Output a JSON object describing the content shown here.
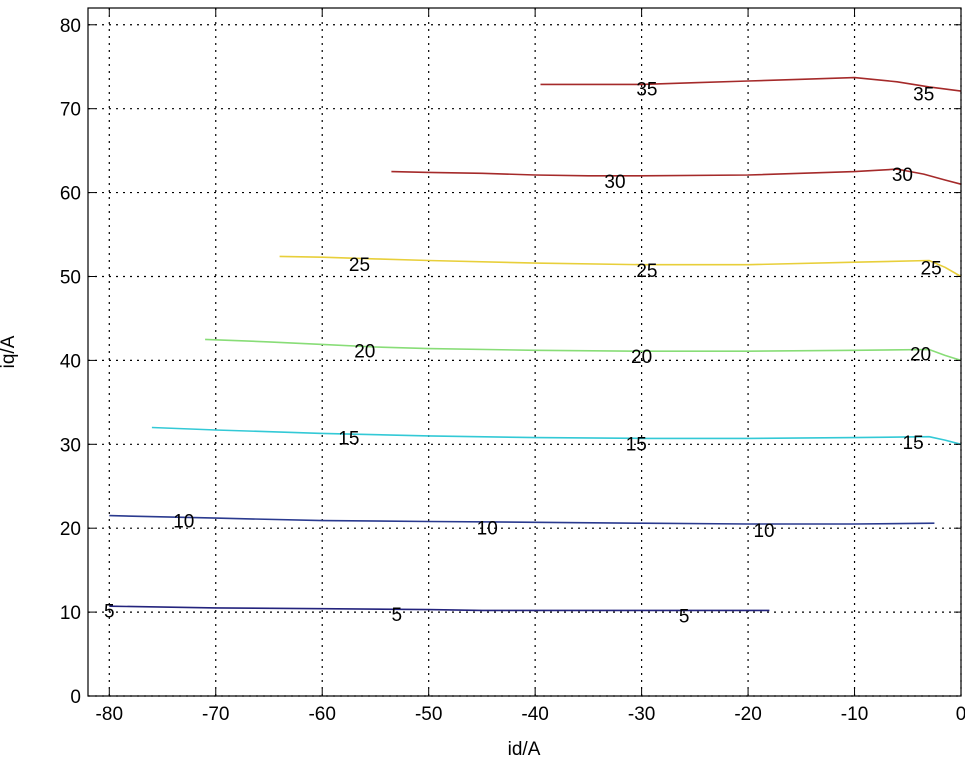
{
  "chart_data": {
    "type": "line",
    "subtype": "contour",
    "xlabel": "id/A",
    "ylabel": "iq/A",
    "xlim": [
      -82,
      0
    ],
    "ylim": [
      0,
      82
    ],
    "xticks": [
      -80,
      -70,
      -60,
      -50,
      -40,
      -30,
      -20,
      -10,
      0
    ],
    "yticks": [
      0,
      10,
      20,
      30,
      40,
      50,
      60,
      70,
      80
    ],
    "grid": true,
    "series": [
      {
        "level": "5",
        "color": "#23237d",
        "points": [
          [
            -80,
            10.7
          ],
          [
            -70,
            10.5
          ],
          [
            -60,
            10.4
          ],
          [
            -50,
            10.3
          ],
          [
            -45,
            10.2
          ],
          [
            -30,
            10.2
          ],
          [
            -18,
            10.2
          ]
        ],
        "labels": [
          {
            "text": "5",
            "x": -80,
            "y": 10.2
          },
          {
            "text": "5",
            "x": -53,
            "y": 9.8
          },
          {
            "text": "5",
            "x": -26,
            "y": 9.6
          }
        ]
      },
      {
        "level": "10",
        "color": "#2a3a8f",
        "points": [
          [
            -80,
            21.5
          ],
          [
            -70,
            21.2
          ],
          [
            -60,
            20.9
          ],
          [
            -50,
            20.8
          ],
          [
            -40,
            20.7
          ],
          [
            -30,
            20.6
          ],
          [
            -20,
            20.5
          ],
          [
            -10,
            20.5
          ],
          [
            -2.5,
            20.6
          ]
        ],
        "labels": [
          {
            "text": "10",
            "x": -73,
            "y": 20.9
          },
          {
            "text": "10",
            "x": -44.5,
            "y": 20.1
          },
          {
            "text": "10",
            "x": -18.5,
            "y": 19.8
          }
        ]
      },
      {
        "level": "15",
        "color": "#33c9d6",
        "points": [
          [
            -76,
            32.0
          ],
          [
            -70,
            31.7
          ],
          [
            -60,
            31.3
          ],
          [
            -50,
            31.0
          ],
          [
            -40,
            30.8
          ],
          [
            -30,
            30.7
          ],
          [
            -20,
            30.7
          ],
          [
            -10,
            30.8
          ],
          [
            -3,
            30.9
          ],
          [
            -1.5,
            30.5
          ],
          [
            0,
            30.0
          ]
        ],
        "labels": [
          {
            "text": "15",
            "x": -57.5,
            "y": 30.8
          },
          {
            "text": "15",
            "x": -30.5,
            "y": 30.1
          },
          {
            "text": "15",
            "x": -4.5,
            "y": 30.3
          }
        ]
      },
      {
        "level": "20",
        "color": "#88dd77",
        "points": [
          [
            -71,
            42.5
          ],
          [
            -65,
            42.2
          ],
          [
            -60,
            41.9
          ],
          [
            -55,
            41.6
          ],
          [
            -50,
            41.4
          ],
          [
            -40,
            41.2
          ],
          [
            -30,
            41.1
          ],
          [
            -20,
            41.1
          ],
          [
            -10,
            41.2
          ],
          [
            -3,
            41.3
          ],
          [
            -1.5,
            40.6
          ],
          [
            0,
            40.0
          ]
        ],
        "labels": [
          {
            "text": "20",
            "x": -56,
            "y": 41.2
          },
          {
            "text": "20",
            "x": -30,
            "y": 40.5
          },
          {
            "text": "20",
            "x": -3.8,
            "y": 40.8
          }
        ]
      },
      {
        "level": "25",
        "color": "#e8cf3a",
        "points": [
          [
            -64,
            52.4
          ],
          [
            -60,
            52.3
          ],
          [
            -55,
            52.1
          ],
          [
            -50,
            51.9
          ],
          [
            -40,
            51.6
          ],
          [
            -30,
            51.4
          ],
          [
            -20,
            51.4
          ],
          [
            -10,
            51.7
          ],
          [
            -3,
            51.9
          ],
          [
            -1.5,
            51.1
          ],
          [
            0,
            50.0
          ]
        ],
        "labels": [
          {
            "text": "25",
            "x": -56.5,
            "y": 51.5
          },
          {
            "text": "25",
            "x": -29.5,
            "y": 50.8
          },
          {
            "text": "25",
            "x": -2.8,
            "y": 51.1
          }
        ]
      },
      {
        "level": "30",
        "color": "#a52a2a",
        "points": [
          [
            -53.5,
            62.5
          ],
          [
            -50,
            62.4
          ],
          [
            -45,
            62.3
          ],
          [
            -40,
            62.1
          ],
          [
            -35,
            62.0
          ],
          [
            -30,
            62.0
          ],
          [
            -20,
            62.1
          ],
          [
            -10,
            62.5
          ],
          [
            -6,
            62.8
          ],
          [
            -3.5,
            62.2
          ],
          [
            -1.5,
            61.5
          ],
          [
            0,
            61.0
          ]
        ],
        "labels": [
          {
            "text": "30",
            "x": -32.5,
            "y": 61.4
          },
          {
            "text": "30",
            "x": -5.5,
            "y": 62.2
          }
        ]
      },
      {
        "level": "35",
        "color": "#a52a2a",
        "points": [
          [
            -39.5,
            72.9
          ],
          [
            -35,
            72.9
          ],
          [
            -30,
            72.9
          ],
          [
            -25,
            73.1
          ],
          [
            -20,
            73.3
          ],
          [
            -15,
            73.5
          ],
          [
            -10,
            73.7
          ],
          [
            -6,
            73.2
          ],
          [
            -3,
            72.6
          ],
          [
            0,
            72.1
          ]
        ],
        "labels": [
          {
            "text": "35",
            "x": -29.5,
            "y": 72.4
          },
          {
            "text": "35",
            "x": -3.5,
            "y": 71.8
          }
        ]
      }
    ]
  }
}
